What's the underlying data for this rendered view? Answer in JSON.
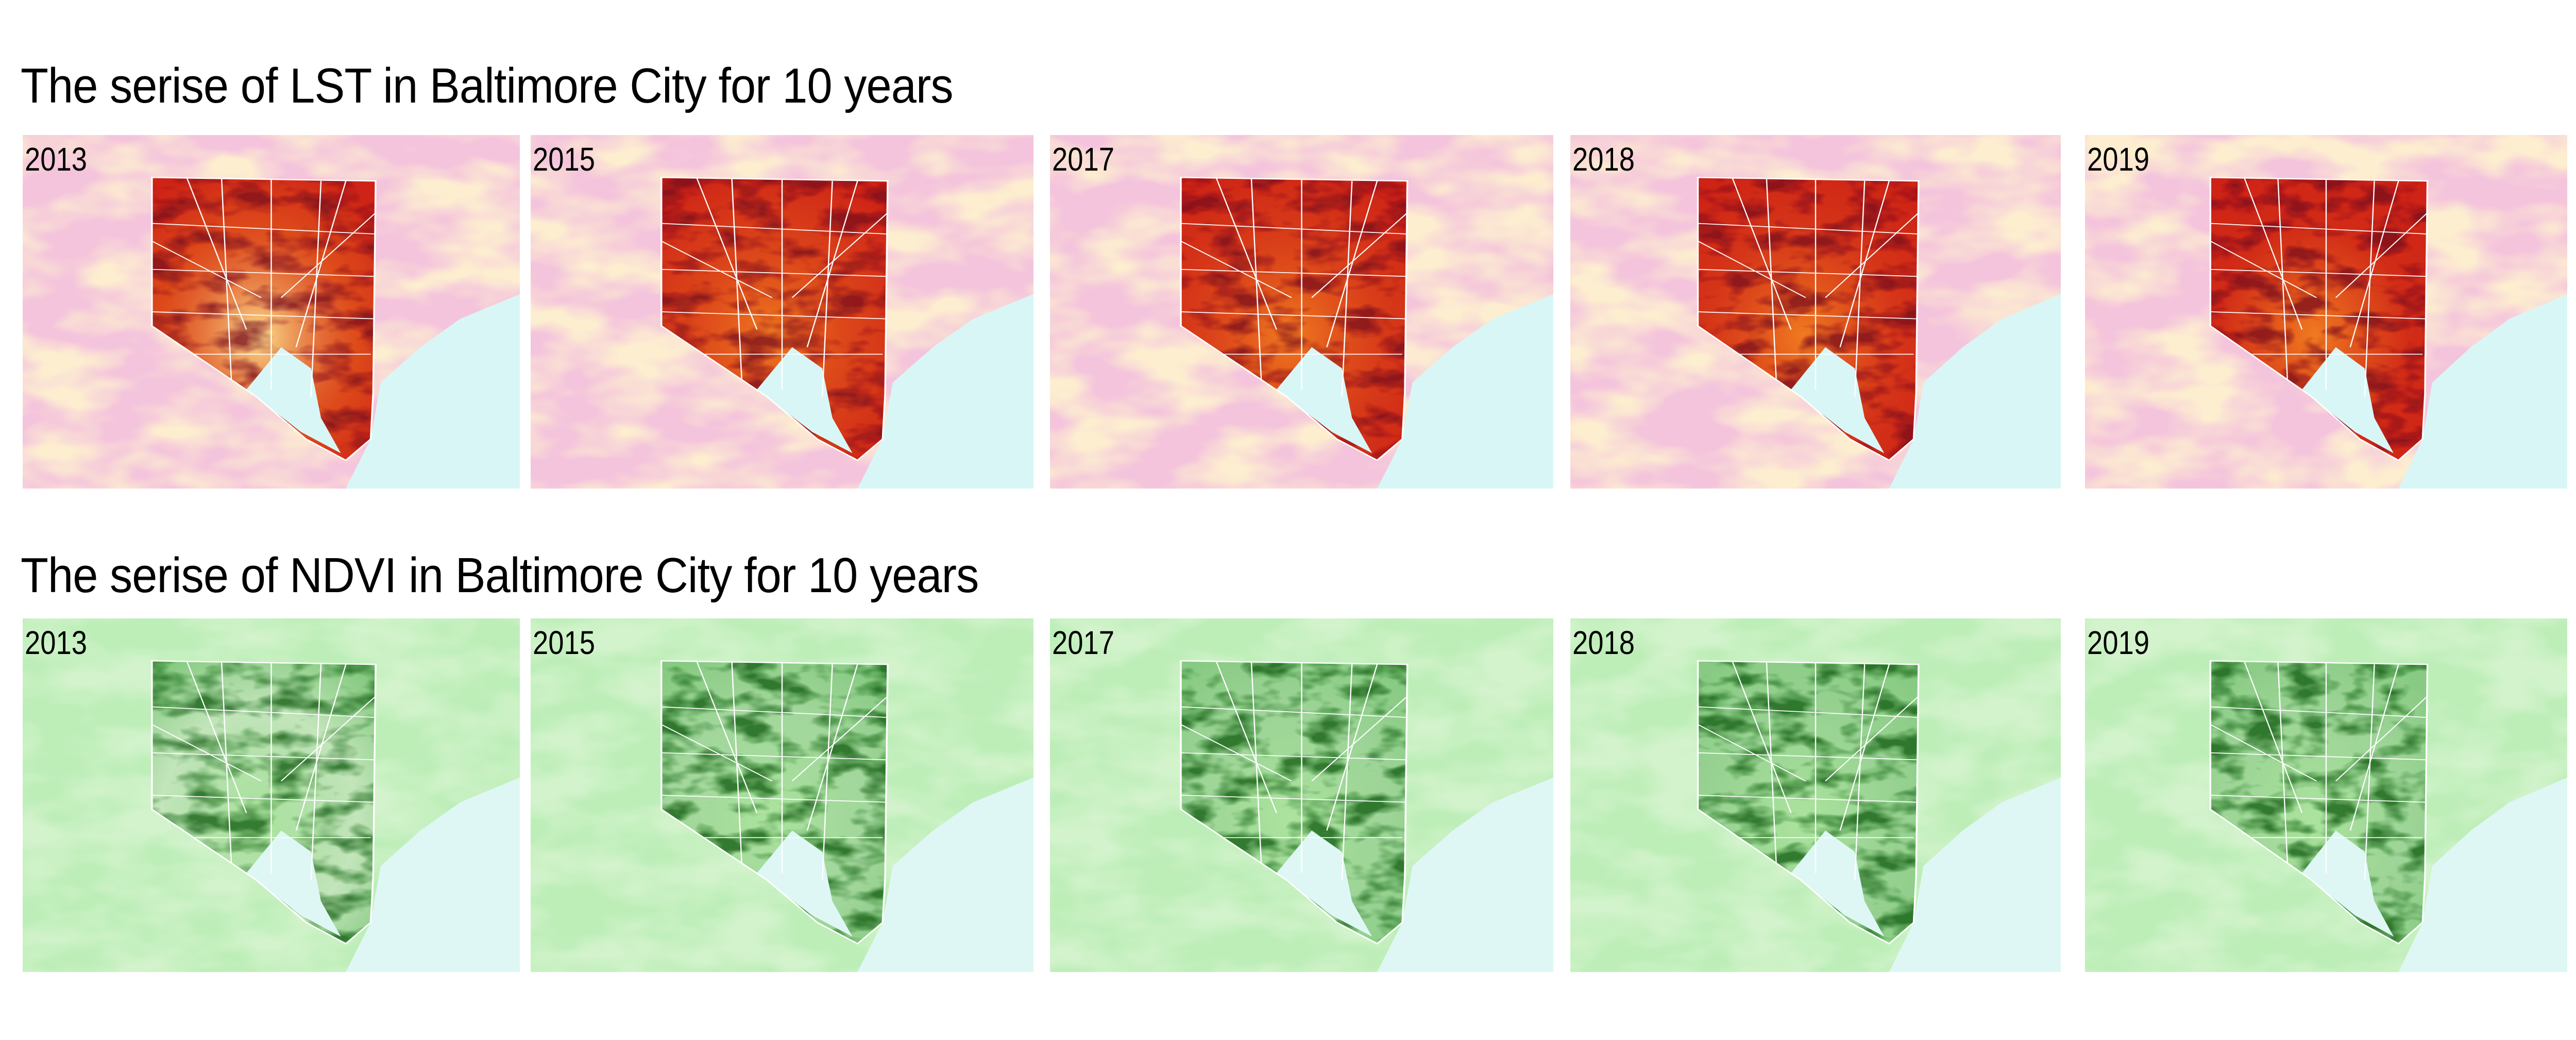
{
  "rows": [
    {
      "title": "The serise of LST in Baltimore City for 10 years",
      "variable": "LST",
      "palette": {
        "background": "#f4c4dc",
        "background_patch": "#fdeed0",
        "water": "#d9f6f7",
        "low": "#fff3a0",
        "mid": "#f07a20",
        "high": "#c81414",
        "extreme": "#7a0a1e"
      },
      "panels": [
        {
          "year": "2013"
        },
        {
          "year": "2015"
        },
        {
          "year": "2017"
        },
        {
          "year": "2018"
        },
        {
          "year": "2019"
        }
      ]
    },
    {
      "title": "The serise of NDVI in Baltimore City for 10 years",
      "variable": "NDVI",
      "palette": {
        "background": "#bdeeb8",
        "background_patch": "#d3f3cc",
        "water": "#def7f4",
        "low": "#f2fbe8",
        "mid": "#66cc55",
        "high": "#1e9a1e",
        "extreme": "#0a5a0a"
      },
      "panels": [
        {
          "year": "2013"
        },
        {
          "year": "2015"
        },
        {
          "year": "2017"
        },
        {
          "year": "2018"
        },
        {
          "year": "2019"
        }
      ]
    }
  ]
}
